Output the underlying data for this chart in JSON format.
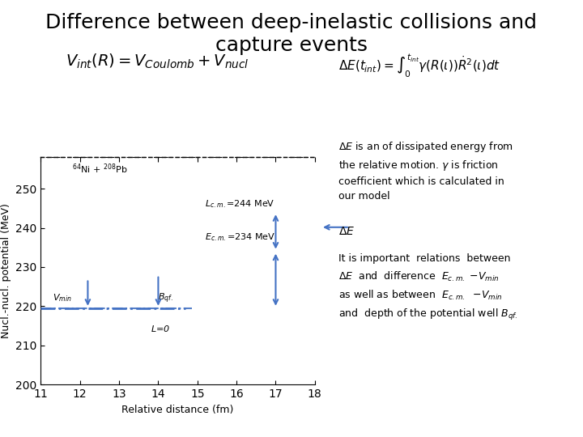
{
  "title": "Difference between deep-inelastic collisions and\ncapture events",
  "title_fontsize": 18,
  "background_color": "#ffffff",
  "formula_main": "$V_{int}(R) = V_{Coulomb}  +  V_{nucl}$",
  "formula_integral": "$\\Delta E(t_{int}) = \\int_{0}^{t_{int}} \\gamma(R(\\iota))\\dot{R}^2(\\iota)dt$",
  "xlabel": "Relative distance (fm)",
  "ylabel": "Nucl.-nucl. potential (MeV)",
  "xlim": [
    11,
    18
  ],
  "ylim": [
    200,
    258
  ],
  "yticks": [
    200,
    210,
    220,
    230,
    240,
    250
  ],
  "xticks": [
    11,
    12,
    13,
    14,
    15,
    16,
    17,
    18
  ],
  "vmin_y": 219.5,
  "label_system": "$^{64}$Ni + $^{208}$Pb",
  "label_Lcm": "$L_{c.m.}$=244 MeV",
  "label_Ecm": "$E_{c.m.}$=234 MeV",
  "label_L0": "$L$=0",
  "label_Vmin": "$V_{min}$",
  "label_Bqf": "$B_{qf.}$",
  "label_DeltaE": "$\\Delta E$",
  "desc_deltaE": "$\\Delta E$ is an of dissipated energy from\nthe relative motion. $\\gamma$ is friction\ncoefficient which is calculated in\nour model",
  "desc_relations": "It is important  relations  between\n$\\Delta E$  and  difference  $E_{c.m.}$ $-V_{min}$\nas well as between  $E_{c.m.}$  $-V_{min}$\nand  depth of the potential well $B_{qf.}$",
  "arrow_color": "#4472c4",
  "curve_color_black": "#000000",
  "dashed_color": "#000000",
  "dashdot_color": "#4472c4"
}
